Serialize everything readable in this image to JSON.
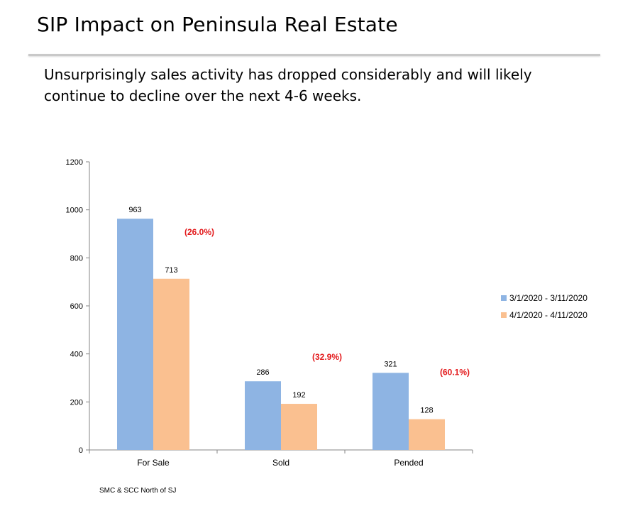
{
  "slide": {
    "title": "SIP Impact on Peninsula Real Estate",
    "subtitle": "Unsurprisingly sales activity has dropped considerably and will likely continue to decline over the next 4-6 weeks.",
    "source": "SMC & SCC North of SJ"
  },
  "chart_data": {
    "type": "bar",
    "categories": [
      "For Sale",
      "Sold",
      "Pended"
    ],
    "series": [
      {
        "name": "3/1/2020 - 3/11/2020",
        "values": [
          963,
          286,
          321
        ],
        "color": "#8eb4e3"
      },
      {
        "name": "4/1/2020 - 4/11/2020",
        "values": [
          713,
          192,
          128
        ],
        "color": "#fac090"
      }
    ],
    "annotations": [
      "(26.0%)",
      "(32.9%)",
      "(60.1%)"
    ],
    "annotation_color": "#e31a1c",
    "ylim": [
      0,
      1200
    ],
    "yticks": [
      0,
      200,
      400,
      600,
      800,
      1000,
      1200
    ],
    "grid": false,
    "legend_position": "right",
    "xlabel": "",
    "ylabel": ""
  }
}
